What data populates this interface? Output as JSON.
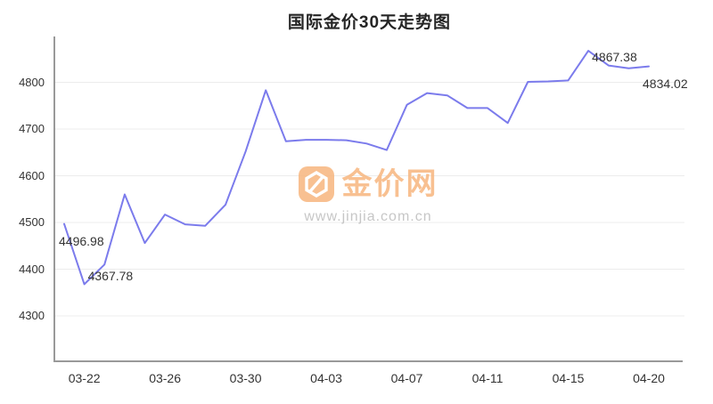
{
  "page": {
    "background": "#ffffff"
  },
  "chart": {
    "title": "国际金价30天走势图",
    "watermark": {
      "site_name": "金价网",
      "site_url": "www.jinjia.com.cn",
      "icon": "jinjia-logo-icon",
      "orange": "#F7B67E",
      "url_gray": "#BDBDBD"
    },
    "colors": {
      "line": "#7B7BEC",
      "axis": "#999999",
      "grid": "#ECECEC",
      "text": "#333333"
    }
  },
  "chart_data": {
    "type": "line",
    "title": "国际金价30天走势图",
    "x_tick_labels": [
      "03-22",
      "03-26",
      "03-30",
      "04-03",
      "04-07",
      "04-11",
      "04-15",
      "04-20"
    ],
    "x_tick_point_indices": [
      1,
      5,
      9,
      13,
      17,
      21,
      25,
      29
    ],
    "y_ticks": [
      4300,
      4400,
      4500,
      4600,
      4700,
      4800
    ],
    "ylim": [
      4203,
      4898
    ],
    "grid": true,
    "legend": null,
    "values": [
      4496.98,
      4367.78,
      4410,
      4560,
      4456,
      4517,
      4496,
      4493,
      4538,
      4652,
      4783,
      4674,
      4677,
      4677,
      4676,
      4669,
      4655,
      4752,
      4777,
      4772,
      4745,
      4745,
      4713,
      4801,
      4802,
      4804,
      4867.38,
      4836,
      4830,
      4834.02
    ],
    "annotations": [
      {
        "label": "4496.98",
        "point_index": 0
      },
      {
        "label": "4367.78",
        "point_index": 1
      },
      {
        "label": "4867.38",
        "point_index": 26
      },
      {
        "label": "4834.02",
        "point_index": 29
      }
    ]
  }
}
